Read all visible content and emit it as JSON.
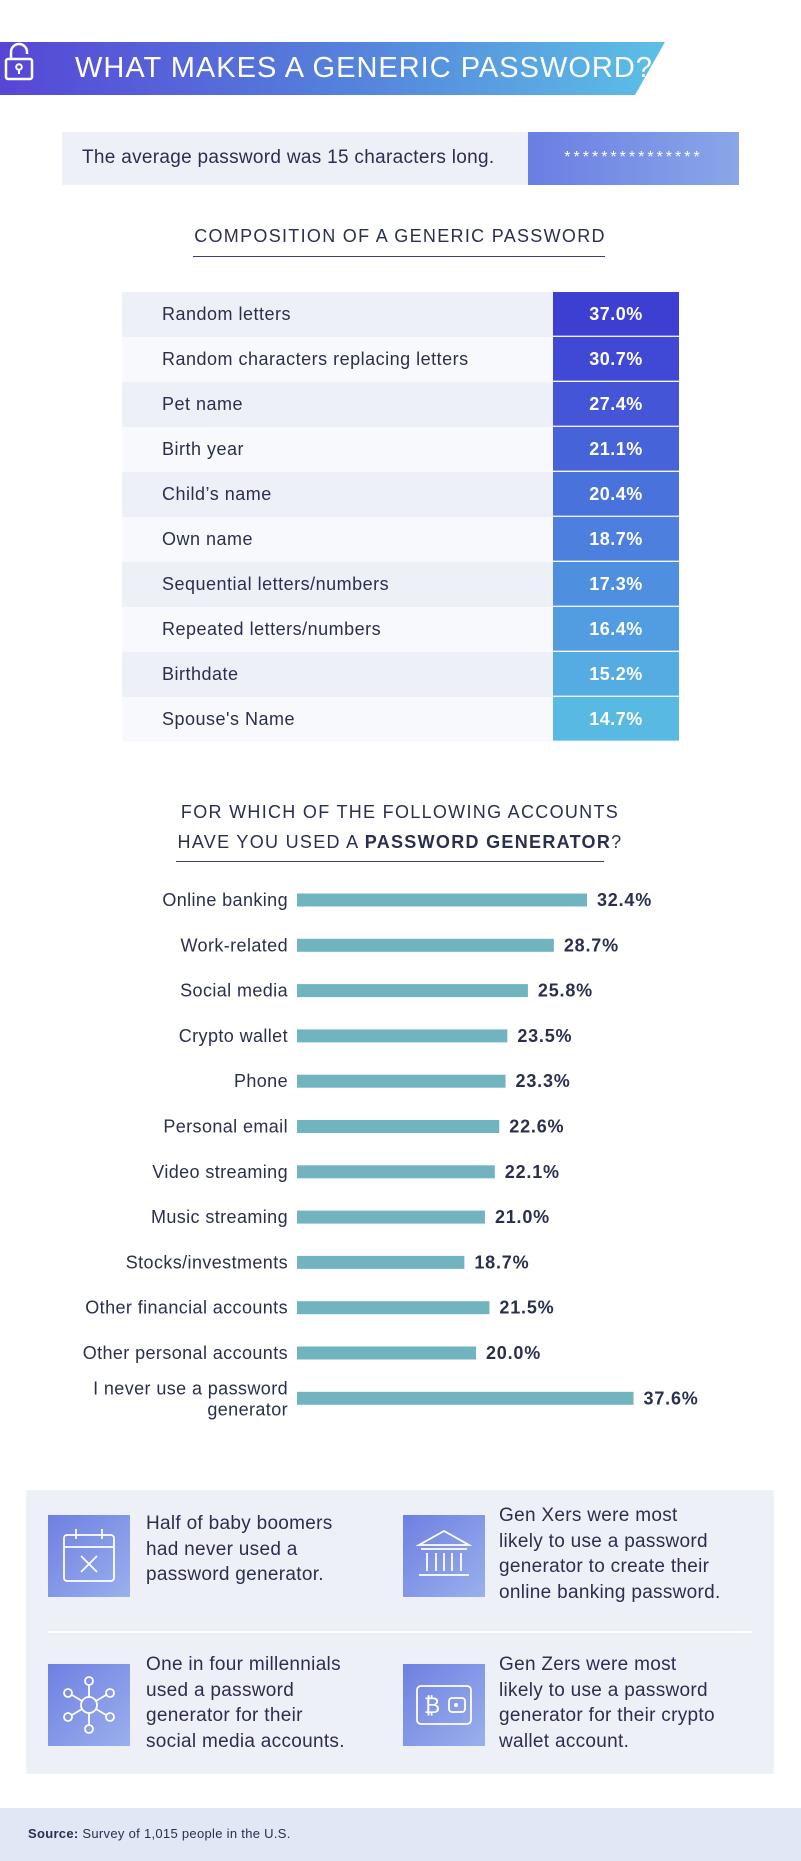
{
  "header": {
    "title": "WHAT MAKES A GENERIC PASSWORD?"
  },
  "average": {
    "text": "The average password was 15 characters long.",
    "stars": "***************"
  },
  "composition": {
    "heading": "COMPOSITION OF A GENERIC PASSWORD",
    "rows": [
      {
        "label": "Random letters",
        "value": "37.0%",
        "color": "#3d3fd2"
      },
      {
        "label": "Random characters replacing letters",
        "value": "30.7%",
        "color": "#4048d6"
      },
      {
        "label": "Pet name",
        "value": "27.4%",
        "color": "#4455d8"
      },
      {
        "label": "Birth year",
        "value": "21.1%",
        "color": "#4763da"
      },
      {
        "label": "Child’s name",
        "value": "20.4%",
        "color": "#4a72dc"
      },
      {
        "label": "Own name",
        "value": "18.7%",
        "color": "#4d80de"
      },
      {
        "label": "Sequential letters/numbers",
        "value": "17.3%",
        "color": "#4f8fe0"
      },
      {
        "label": "Repeated letters/numbers",
        "value": "16.4%",
        "color": "#529de2"
      },
      {
        "label": "Birthdate",
        "value": "15.2%",
        "color": "#55ace2"
      },
      {
        "label": "Spouse's Name",
        "value": "14.7%",
        "color": "#58bae2"
      }
    ]
  },
  "generator": {
    "heading_line1": "FOR WHICH OF THE FOLLOWING ACCOUNTS",
    "heading_line2_prefix": "HAVE YOU USED A ",
    "heading_line2_bold": "PASSWORD GENERATOR",
    "heading_line2_suffix": "?"
  },
  "chart_data": {
    "type": "bar",
    "orientation": "horizontal",
    "title": "FOR WHICH OF THE FOLLOWING ACCOUNTS HAVE YOU USED A PASSWORD GENERATOR?",
    "bar_color": "#71b4bf",
    "categories": [
      [
        "Online banking"
      ],
      [
        "Work-related"
      ],
      [
        "Social media"
      ],
      [
        "Crypto wallet"
      ],
      [
        "Phone"
      ],
      [
        "Personal email"
      ],
      [
        "Video streaming"
      ],
      [
        "Music streaming"
      ],
      [
        "Stocks/investments"
      ],
      [
        "Other financial accounts"
      ],
      [
        "Other personal accounts"
      ],
      [
        "I never use a password",
        "generator"
      ]
    ],
    "values": [
      32.4,
      28.7,
      25.8,
      23.5,
      23.3,
      22.6,
      22.1,
      21.0,
      18.7,
      21.5,
      20.0,
      37.6
    ],
    "value_labels": [
      "32.4%",
      "28.7%",
      "25.8%",
      "23.5%",
      "23.3%",
      "22.6%",
      "22.1%",
      "21.0%",
      "18.7%",
      "21.5%",
      "20.0%",
      "37.6%"
    ]
  },
  "facts": [
    {
      "icon": "calendar-x-icon",
      "lines": [
        "Half of baby boomers",
        "had never used a",
        "password generator."
      ]
    },
    {
      "icon": "bank-icon",
      "lines": [
        "Gen Xers were most",
        "likely to use a password",
        "generator to create their",
        "online banking password."
      ]
    },
    {
      "icon": "social-network-icon",
      "lines": [
        "One in four millennials",
        "used a password",
        "generator for their",
        "social media accounts."
      ]
    },
    {
      "icon": "bitcoin-wallet-icon",
      "lines": [
        "Gen Zers were most",
        "likely to use a password",
        "generator for their crypto",
        "wallet account."
      ]
    }
  ],
  "footer": {
    "source_label": "Source:",
    "source_text": " Survey of 1,015 people in the U.S."
  }
}
